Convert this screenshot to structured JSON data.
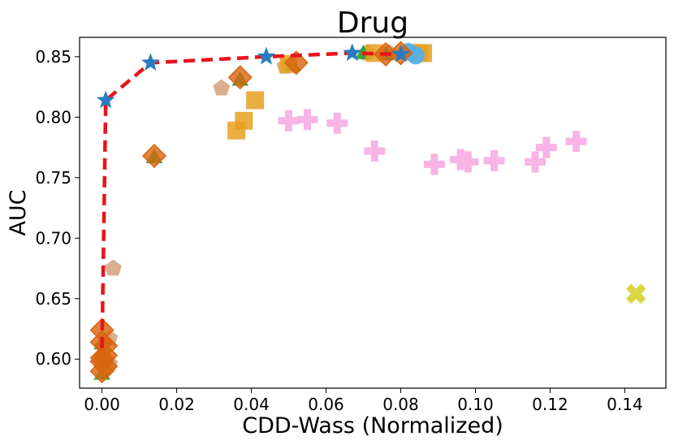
{
  "chart_data": {
    "type": "scatter",
    "title": "Drug",
    "xlabel": "CDD-Wass (Normalized)",
    "ylabel": "AUC",
    "xlim": [
      -0.006,
      0.151
    ],
    "ylim": [
      0.576,
      0.866
    ],
    "xticks": [
      "0.00",
      "0.02",
      "0.04",
      "0.06",
      "0.08",
      "0.10",
      "0.12",
      "0.14"
    ],
    "xtick_values": [
      0.0,
      0.02,
      0.04,
      0.06,
      0.08,
      0.1,
      0.12,
      0.14
    ],
    "yticks": [
      "0.60",
      "0.65",
      "0.70",
      "0.75",
      "0.80",
      "0.85"
    ],
    "ytick_values": [
      0.6,
      0.65,
      0.7,
      0.75,
      0.8,
      0.85
    ],
    "colors": {
      "frontier_line": "#e8141a",
      "star": "#2a7bbf",
      "triangle": "#2ca02c",
      "diamond": "#d86510",
      "square": "#e8a020",
      "pentagon": "#d4a07a",
      "plus": "#f8b4e4",
      "x": "#d8d030",
      "circle": "#55b0e8",
      "dark": "#444444"
    },
    "series": [
      {
        "name": "pareto-frontier",
        "marker": "line",
        "points": [
          [
            0.0,
            0.609
          ],
          [
            0.001,
            0.814
          ],
          [
            0.013,
            0.845
          ],
          [
            0.044,
            0.85
          ],
          [
            0.067,
            0.853
          ],
          [
            0.08,
            0.852
          ]
        ]
      },
      {
        "name": "pentagon",
        "marker": "pentagon",
        "points": [
          [
            0.002,
            0.596
          ],
          [
            0.002,
            0.617
          ],
          [
            0.003,
            0.675
          ],
          [
            0.032,
            0.824
          ],
          [
            0.049,
            0.842
          ],
          [
            0.071,
            0.853
          ],
          [
            0.077,
            0.853
          ]
        ]
      },
      {
        "name": "triangle",
        "marker": "triangle",
        "points": [
          [
            0.0,
            0.587
          ],
          [
            0.001,
            0.603
          ],
          [
            0.0,
            0.612
          ],
          [
            0.014,
            0.766
          ],
          [
            0.037,
            0.83
          ],
          [
            0.051,
            0.842
          ],
          [
            0.07,
            0.852
          ],
          [
            0.076,
            0.851
          ],
          [
            0.082,
            0.852
          ]
        ]
      },
      {
        "name": "square",
        "marker": "square",
        "points": [
          [
            0.036,
            0.789
          ],
          [
            0.038,
            0.797
          ],
          [
            0.041,
            0.814
          ],
          [
            0.05,
            0.844
          ],
          [
            0.073,
            0.853
          ],
          [
            0.085,
            0.853
          ],
          [
            0.086,
            0.853
          ]
        ]
      },
      {
        "name": "circle",
        "marker": "circle",
        "points": [
          [
            0.084,
            0.851
          ],
          [
            0.082,
            0.854
          ]
        ]
      },
      {
        "name": "diamond",
        "marker": "diamond",
        "points": [
          [
            0.0,
            0.59
          ],
          [
            0.001,
            0.594
          ],
          [
            0.0,
            0.598
          ],
          [
            0.0,
            0.601
          ],
          [
            0.001,
            0.603
          ],
          [
            0.001,
            0.611
          ],
          [
            0.0,
            0.614
          ],
          [
            0.0,
            0.624
          ],
          [
            0.014,
            0.768
          ],
          [
            0.037,
            0.833
          ],
          [
            0.052,
            0.845
          ],
          [
            0.076,
            0.852
          ],
          [
            0.08,
            0.853
          ]
        ]
      },
      {
        "name": "plus",
        "marker": "plus",
        "points": [
          [
            0.05,
            0.797
          ],
          [
            0.055,
            0.798
          ],
          [
            0.063,
            0.795
          ],
          [
            0.073,
            0.772
          ],
          [
            0.089,
            0.761
          ],
          [
            0.096,
            0.765
          ],
          [
            0.098,
            0.763
          ],
          [
            0.105,
            0.764
          ],
          [
            0.116,
            0.763
          ],
          [
            0.119,
            0.775
          ],
          [
            0.127,
            0.78
          ]
        ]
      },
      {
        "name": "x",
        "marker": "x",
        "points": [
          [
            0.143,
            0.654
          ]
        ]
      },
      {
        "name": "star",
        "marker": "star",
        "points": [
          [
            0.001,
            0.814
          ],
          [
            0.013,
            0.845
          ],
          [
            0.044,
            0.85
          ],
          [
            0.067,
            0.853
          ],
          [
            0.08,
            0.852
          ]
        ]
      }
    ]
  }
}
